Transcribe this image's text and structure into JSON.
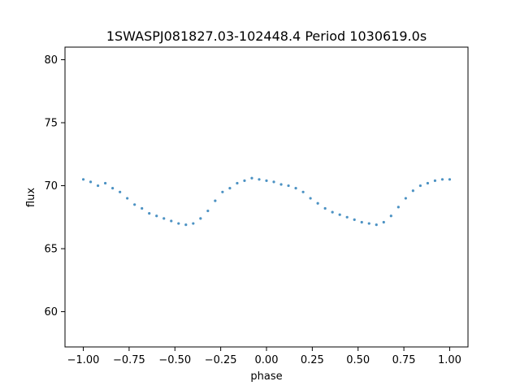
{
  "chart_data": {
    "type": "scatter",
    "title": "1SWASPJ081827.03-102448.4 Period 1030619.0s",
    "xlabel": "phase",
    "ylabel": "flux",
    "xlim": [
      -1.1,
      1.1
    ],
    "ylim": [
      57.2,
      81.0
    ],
    "x_ticks": [
      -1.0,
      -0.75,
      -0.5,
      -0.25,
      0.0,
      0.25,
      0.5,
      0.75,
      1.0
    ],
    "x_tick_labels": [
      "−1.00",
      "−0.75",
      "−0.50",
      "−0.25",
      "0.00",
      "0.25",
      "0.50",
      "0.75",
      "1.00"
    ],
    "y_ticks": [
      60,
      65,
      70,
      75,
      80
    ],
    "y_tick_labels": [
      "60",
      "65",
      "70",
      "75",
      "80"
    ],
    "grid": false,
    "marker_color": "#1f77b4",
    "series": [
      {
        "x": [
          -1.0,
          -0.96,
          -0.92,
          -0.88,
          -0.84,
          -0.8,
          -0.76,
          -0.72,
          -0.68,
          -0.64,
          -0.6,
          -0.56,
          -0.52,
          -0.48,
          -0.44,
          -0.4,
          -0.36,
          -0.32,
          -0.28,
          -0.24,
          -0.2,
          -0.16,
          -0.12,
          -0.08,
          -0.04,
          0.0,
          0.04,
          0.08,
          0.12,
          0.16,
          0.2,
          0.24,
          0.28,
          0.32,
          0.36,
          0.4,
          0.44,
          0.48,
          0.52,
          0.56,
          0.6,
          0.64,
          0.68,
          0.72,
          0.76,
          0.8,
          0.84,
          0.88,
          0.92,
          0.96,
          1.0
        ],
        "y": [
          70.5,
          70.3,
          70.0,
          70.2,
          69.8,
          69.5,
          69.0,
          68.5,
          68.2,
          67.8,
          67.6,
          67.4,
          67.2,
          67.0,
          66.9,
          67.0,
          67.4,
          68.0,
          68.8,
          69.5,
          69.8,
          70.2,
          70.4,
          70.6,
          70.5,
          70.4,
          70.3,
          70.1,
          70.0,
          69.8,
          69.5,
          69.0,
          68.6,
          68.2,
          67.9,
          67.7,
          67.5,
          67.3,
          67.1,
          67.0,
          66.9,
          67.1,
          67.6,
          68.3,
          69.0,
          69.6,
          70.0,
          70.2,
          70.4,
          70.5,
          70.5
        ]
      }
    ]
  }
}
